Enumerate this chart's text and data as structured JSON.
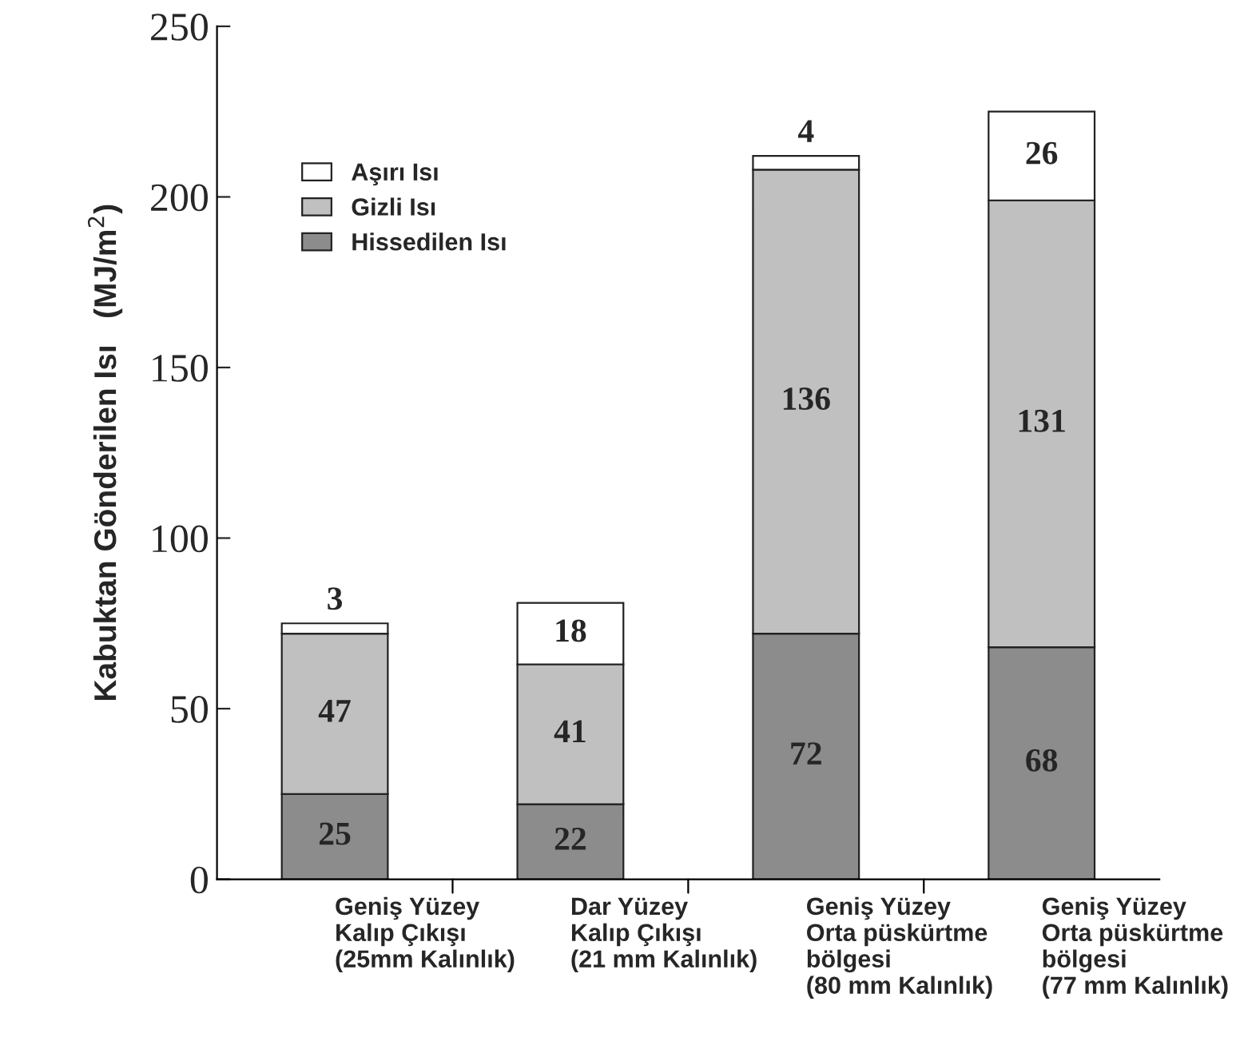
{
  "chart_data": {
    "type": "bar",
    "stacked": true,
    "ylabel": "Kabuktan Gönderilen Isı   (MJ/m$^{2}$)",
    "categories": [
      "Geniş Yüzey\nKalıp Çıkışı\n(25mm Kalınlık)",
      "Dar Yüzey\nKalıp Çıkışı\n(21 mm Kalınlık)",
      "Geniş Yüzey\nOrta püskürtme\nbölgesi\n(80 mm Kalınlık)",
      "Geniş Yüzey\nOrta püskürtme\nbölgesi\n(77 mm Kalınlık)"
    ],
    "series": [
      {
        "name": "Hissedilen Isı",
        "color": "#8c8c8c",
        "values": [
          25,
          22,
          72,
          68
        ]
      },
      {
        "name": "Gizli Isı",
        "color": "#c0c0c0",
        "values": [
          47,
          41,
          136,
          131
        ]
      },
      {
        "name": "Aşırı Isı",
        "color": "#ffffff",
        "values": [
          3,
          18,
          4,
          26
        ]
      }
    ],
    "ylim": [
      0,
      250
    ],
    "yticks": [
      0,
      50,
      100,
      150,
      200,
      250
    ],
    "data_labels": true,
    "grid": false,
    "legend": "top left"
  }
}
